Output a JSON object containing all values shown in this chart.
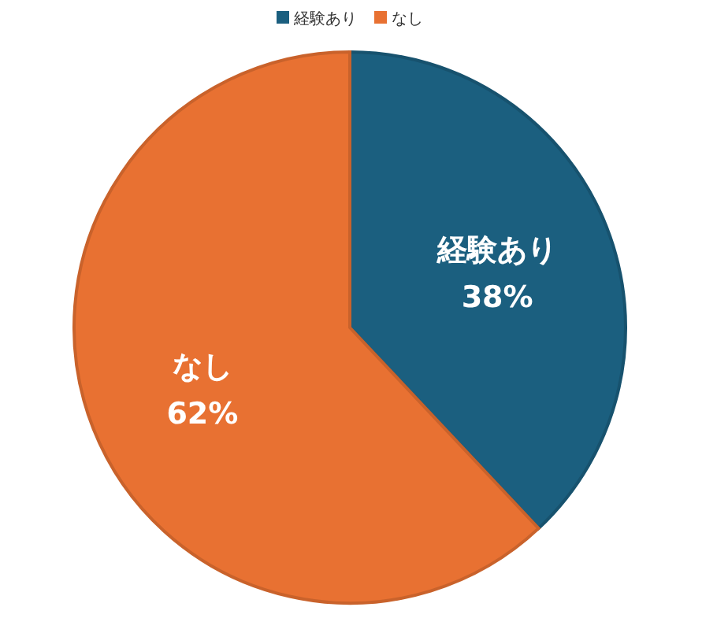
{
  "chart_data": {
    "type": "pie",
    "categories": [
      "経験あり",
      "なし"
    ],
    "values": [
      38,
      62
    ],
    "colors": [
      "#1b5f7f",
      "#e87132"
    ],
    "legend": "top",
    "value_labels": [
      "38%",
      "62%"
    ]
  }
}
